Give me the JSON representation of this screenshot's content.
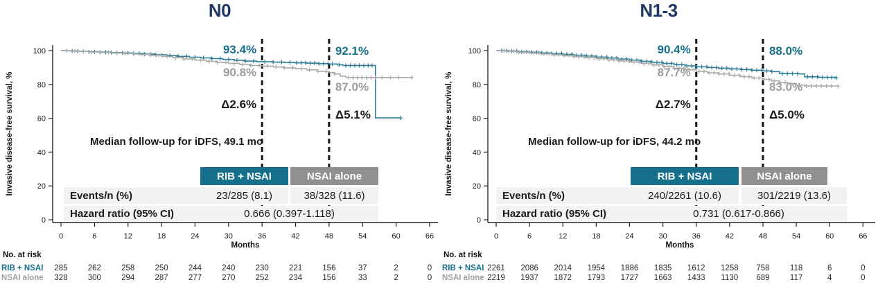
{
  "colors": {
    "accent_teal": "#16708c",
    "curve_teal": "#2e7d95",
    "curve_gray": "#a9a9a9",
    "header_gray": "#909090",
    "title_navy": "#203864",
    "row_bg": "#f2f2f2",
    "dashed_line": "#141414"
  },
  "chart_data": [
    {
      "type": "line",
      "subtype": "kaplan-meier",
      "title": "N0",
      "xlabel": "Months",
      "ylabel": "Invasive disease-free survival, %",
      "xlim": [
        0,
        66
      ],
      "ylim": [
        0,
        100
      ],
      "x_ticks": [
        0,
        6,
        12,
        18,
        24,
        30,
        36,
        42,
        48,
        54,
        60,
        66
      ],
      "y_ticks": [
        100,
        80,
        60,
        40,
        20,
        0
      ],
      "dashed_lines_x": [
        36,
        48
      ],
      "median_note": "Median follow-up for iDFS, 49.1 mo",
      "annotations": {
        "m36_arm1": "93.4%",
        "m36_arm2": "90.8%",
        "m36_delta": "Δ2.6%",
        "m48_arm1": "92.1%",
        "m48_arm2": "87.0%",
        "m48_delta": "Δ5.1%"
      },
      "table": {
        "col1": "RIB + NSAI",
        "col2": "NSAI alone",
        "events_label": "Events/n (%)",
        "events_v1": "23/285 (8.1)",
        "events_v2": "38/328 (11.6)",
        "hr_label": "Hazard ratio (95% CI)",
        "hr_value": "0.666 (0.397-1.118)"
      },
      "series": [
        {
          "name": "RIB + NSAI",
          "color": "#2e7d95",
          "steps": [
            [
              0,
              100
            ],
            [
              1.5,
              99.8
            ],
            [
              3,
              99.6
            ],
            [
              5,
              99.3
            ],
            [
              7,
              99.1
            ],
            [
              9,
              98.8
            ],
            [
              11,
              98.6
            ],
            [
              13,
              98.3
            ],
            [
              15,
              97.9
            ],
            [
              17,
              97.5
            ],
            [
              19,
              97.1
            ],
            [
              21,
              96.6
            ],
            [
              23,
              96.1
            ],
            [
              25,
              95.7
            ],
            [
              27,
              95.3
            ],
            [
              29,
              94.8
            ],
            [
              31,
              94.3
            ],
            [
              33,
              93.8
            ],
            [
              35,
              93.5
            ],
            [
              36,
              93.4
            ],
            [
              38,
              93.2
            ],
            [
              40,
              93.0
            ],
            [
              42,
              92.8
            ],
            [
              44,
              92.6
            ],
            [
              46,
              92.3
            ],
            [
              48,
              92.1
            ],
            [
              49.5,
              91.6
            ],
            [
              50.5,
              91.2
            ],
            [
              56.3,
              60.2
            ],
            [
              60.8,
              60.2
            ]
          ],
          "censors": [
            1,
            2,
            3,
            4,
            5,
            6,
            7,
            8,
            9,
            10,
            11,
            12,
            13,
            14,
            15,
            16,
            17,
            18,
            19.5,
            21,
            22.5,
            24,
            25.5,
            27,
            28.5,
            30,
            31.5,
            33,
            34.5,
            36.5,
            38,
            39.5,
            41,
            42.2,
            43,
            43.8,
            44.6,
            45.4,
            46.2,
            47,
            47.8,
            48.6,
            49.8,
            51,
            51.8,
            52.6,
            53.4,
            54.2,
            55,
            55.7,
            60.8
          ]
        },
        {
          "name": "NSAI alone",
          "color": "#a9a9a9",
          "steps": [
            [
              0,
              100
            ],
            [
              1.5,
              99.8
            ],
            [
              3,
              99.5
            ],
            [
              5,
              99.2
            ],
            [
              7,
              98.9
            ],
            [
              9,
              98.6
            ],
            [
              11,
              98.3
            ],
            [
              13,
              98.0
            ],
            [
              14,
              97.7
            ],
            [
              16,
              97.2
            ],
            [
              18,
              96.5
            ],
            [
              20,
              95.8
            ],
            [
              22,
              95.1
            ],
            [
              24,
              94.4
            ],
            [
              26,
              93.7
            ],
            [
              28,
              93.0
            ],
            [
              30,
              92.4
            ],
            [
              32,
              91.8
            ],
            [
              34,
              91.2
            ],
            [
              36,
              90.8
            ],
            [
              38,
              90.3
            ],
            [
              40,
              89.8
            ],
            [
              42,
              89.3
            ],
            [
              44,
              88.6
            ],
            [
              46,
              87.8
            ],
            [
              48,
              87.0
            ],
            [
              49,
              86.2
            ],
            [
              50,
              84.9
            ],
            [
              51,
              84.1
            ],
            [
              62.8,
              84.1
            ]
          ],
          "censors": [
            1,
            2.5,
            4,
            5.5,
            7,
            8.5,
            10,
            11.5,
            13,
            14.5,
            16,
            17.5,
            19,
            20.5,
            22,
            23.5,
            25,
            26.5,
            28,
            29.5,
            31,
            32.5,
            34,
            35.5,
            37,
            38.5,
            40,
            41.5,
            43,
            44.5,
            46,
            47.5,
            49,
            51.5,
            52.3,
            53.1,
            53.9,
            54.7,
            55.5,
            56.3,
            57.5,
            59,
            60.5,
            62.8
          ]
        }
      ],
      "at_risk": {
        "label": "No. at risk",
        "rows": [
          {
            "name": "RIB + NSAI",
            "values": [
              285,
              262,
              258,
              250,
              244,
              240,
              230,
              221,
              156,
              37,
              2,
              0
            ]
          },
          {
            "name": "NSAI alone",
            "values": [
              328,
              300,
              294,
              287,
              277,
              270,
              252,
              234,
              156,
              33,
              2,
              0
            ]
          }
        ]
      }
    },
    {
      "type": "line",
      "subtype": "kaplan-meier",
      "title": "N1-3",
      "xlabel": "Months",
      "ylabel": "Invasive disease-free survival, %",
      "xlim": [
        0,
        66
      ],
      "ylim": [
        0,
        100
      ],
      "x_ticks": [
        0,
        6,
        12,
        18,
        24,
        30,
        36,
        42,
        48,
        54,
        60,
        66
      ],
      "y_ticks": [
        100,
        80,
        60,
        40,
        20,
        0
      ],
      "dashed_lines_x": [
        36,
        48
      ],
      "median_note": "Median follow-up for iDFS, 44.2 mo",
      "annotations": {
        "m36_arm1": "90.4%",
        "m36_arm2": "87.7%",
        "m36_delta": "Δ2.7%",
        "m48_arm1": "88.0%",
        "m48_arm2": "83.0%",
        "m48_delta": "Δ5.0%"
      },
      "table": {
        "col1": "RIB + NSAI",
        "col2": "NSAI alone",
        "events_label": "Events/n (%)",
        "events_v1": "240/2261 (10.6)",
        "events_v2": "301/2219 (13.6)",
        "hr_label": "Hazard ratio (95% CI)",
        "hr_value": "0.731 (0.617-0.866)"
      },
      "series": [
        {
          "name": "RIB + NSAI",
          "color": "#2e7d95",
          "steps": [
            [
              0,
              100
            ],
            [
              2,
              99.7
            ],
            [
              4,
              99.3
            ],
            [
              6,
              99.0
            ],
            [
              8,
              98.6
            ],
            [
              10,
              98.2
            ],
            [
              12,
              97.8
            ],
            [
              14,
              97.3
            ],
            [
              16,
              96.8
            ],
            [
              18,
              96.2
            ],
            [
              20,
              95.6
            ],
            [
              22,
              95.0
            ],
            [
              24,
              94.4
            ],
            [
              26,
              93.7
            ],
            [
              28,
              93.1
            ],
            [
              30,
              92.4
            ],
            [
              32,
              91.7
            ],
            [
              34,
              91.0
            ],
            [
              36,
              90.4
            ],
            [
              38,
              90.0
            ],
            [
              40,
              89.6
            ],
            [
              42,
              89.2
            ],
            [
              44,
              88.8
            ],
            [
              46,
              88.4
            ],
            [
              48,
              88.0
            ],
            [
              49.5,
              87.6
            ],
            [
              51,
              86.4
            ],
            [
              54.5,
              86.2
            ],
            [
              55.5,
              84.5
            ],
            [
              58,
              84.2
            ],
            [
              61.2,
              83.8
            ]
          ],
          "censors": [
            1,
            1.9,
            2.8,
            3.7,
            4.6,
            5.5,
            6.4,
            7.3,
            8.2,
            9.1,
            10,
            10.9,
            11.8,
            12.7,
            13.6,
            14.5,
            15.4,
            16.3,
            17.2,
            18.1,
            19,
            19.9,
            20.8,
            21.7,
            22.6,
            23.5,
            24.4,
            25.3,
            26.2,
            27.1,
            28,
            28.9,
            29.8,
            30.7,
            31.6,
            32.5,
            33.4,
            34.3,
            35.2,
            36.1,
            37,
            37.9,
            38.8,
            39.7,
            40.6,
            41.5,
            42.4,
            43.3,
            44.2,
            45.1,
            46,
            46.9,
            47.8,
            48.7,
            49.6,
            51.5,
            52.4,
            53.3,
            54.2,
            56,
            56.9,
            57.8,
            58.7,
            59.6,
            60.4,
            61.2
          ]
        },
        {
          "name": "NSAI alone",
          "color": "#a9a9a9",
          "steps": [
            [
              0,
              100
            ],
            [
              2,
              99.5
            ],
            [
              4,
              99.0
            ],
            [
              6,
              98.6
            ],
            [
              8,
              98.1
            ],
            [
              10,
              97.5
            ],
            [
              12,
              97.0
            ],
            [
              14,
              96.4
            ],
            [
              16,
              95.8
            ],
            [
              18,
              95.2
            ],
            [
              20,
              94.5
            ],
            [
              22,
              93.9
            ],
            [
              24,
              93.2
            ],
            [
              26,
              92.4
            ],
            [
              28,
              91.5
            ],
            [
              30,
              90.6
            ],
            [
              32,
              89.6
            ],
            [
              34,
              88.7
            ],
            [
              36,
              87.7
            ],
            [
              38,
              86.9
            ],
            [
              40,
              86.2
            ],
            [
              42,
              85.4
            ],
            [
              44,
              84.6
            ],
            [
              46,
              83.8
            ],
            [
              48,
              83.0
            ],
            [
              49.5,
              82.1
            ],
            [
              51,
              81.2
            ],
            [
              52.5,
              80.4
            ],
            [
              54,
              79.6
            ],
            [
              55.5,
              79.1
            ],
            [
              61.5,
              78.9
            ]
          ],
          "censors": [
            1.4,
            2.3,
            3.2,
            4.1,
            5,
            5.9,
            6.8,
            7.7,
            8.6,
            9.5,
            10.4,
            11.3,
            12.2,
            13.1,
            14,
            14.9,
            15.8,
            16.7,
            17.6,
            18.5,
            19.4,
            20.3,
            21.2,
            22.1,
            23,
            23.9,
            24.8,
            25.7,
            26.6,
            27.5,
            28.4,
            29.3,
            30.2,
            31.1,
            32,
            32.9,
            33.8,
            34.7,
            35.6,
            36.5,
            37.4,
            38.3,
            39.2,
            40.1,
            41,
            41.9,
            42.8,
            43.7,
            44.6,
            45.5,
            46.4,
            47.3,
            48.2,
            49.1,
            50,
            51,
            52,
            53,
            54.5,
            55.8,
            56.7,
            57.6,
            58.5,
            59.4,
            60.3,
            61.5
          ]
        }
      ],
      "at_risk": {
        "label": "No. at risk",
        "rows": [
          {
            "name": "RIB + NSAI",
            "values": [
              2261,
              2086,
              2014,
              1954,
              1886,
              1835,
              1612,
              1258,
              758,
              118,
              6,
              0
            ]
          },
          {
            "name": "NSAI alone",
            "values": [
              2219,
              1937,
              1872,
              1793,
              1727,
              1663,
              1433,
              1130,
              689,
              117,
              4,
              0
            ]
          }
        ]
      }
    }
  ]
}
